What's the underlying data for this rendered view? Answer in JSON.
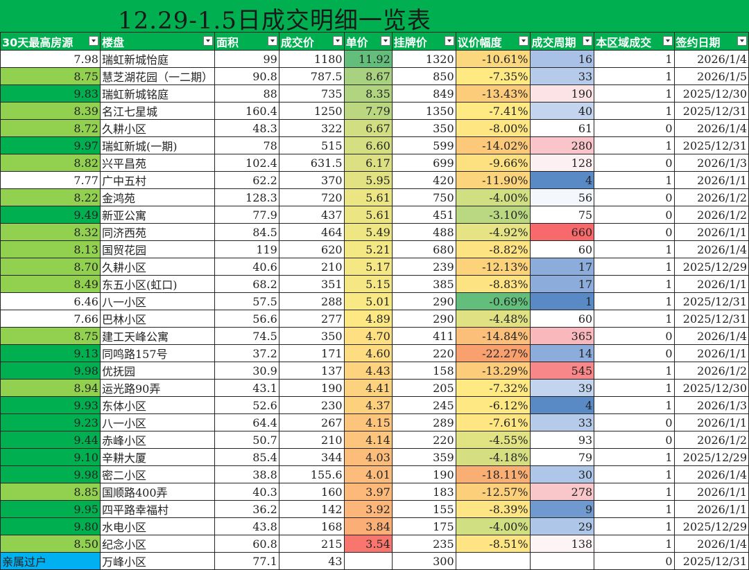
{
  "title": "12.29-1.5日成交明细一览表",
  "columns": [
    "30天最高房源",
    "楼盘",
    "面积",
    "成交价",
    "单价",
    "挂牌价",
    "议价幅度",
    "成交周期",
    "本区域成交",
    "签约日期"
  ],
  "rows": [
    {
      "score": "7.98",
      "name": "瑞虹新城怡庭",
      "area": "99",
      "price": "1180",
      "unit": "11.92",
      "list": "1320",
      "discount": "-10.61%",
      "cycle": "16",
      "local": "1",
      "date": "2026/1/4",
      "c_score": "#ffffff",
      "c_unit": "#63be7b",
      "c_disc": "#fbd87d",
      "c_cycle": "#a9c1e6"
    },
    {
      "score": "8.75",
      "name": "慧芝湖花园（一二期）",
      "area": "90.8",
      "price": "787.5",
      "unit": "8.67",
      "list": "850",
      "discount": "-7.35%",
      "cycle": "33",
      "local": "1",
      "date": "2026/1/5",
      "c_score": "#92d050",
      "c_unit": "#a8d27f",
      "c_disc": "#fee983",
      "c_cycle": "#b6cbea"
    },
    {
      "score": "9.83",
      "name": "瑞虹新城铭庭",
      "area": "88",
      "price": "735",
      "unit": "8.35",
      "list": "849",
      "discount": "-13.43%",
      "cycle": "190",
      "local": "1",
      "date": "2025/12/30",
      "c_score": "#00b050",
      "c_unit": "#b0d480",
      "c_disc": "#fccc7a",
      "c_cycle": "#fbe3e6"
    },
    {
      "score": "8.39",
      "name": "名江七星城",
      "area": "160.4",
      "price": "1250",
      "unit": "7.79",
      "list": "1350",
      "discount": "-7.41%",
      "cycle": "40",
      "local": "1",
      "date": "2025/12/31",
      "c_score": "#92d050",
      "c_unit": "#bbd881",
      "c_disc": "#fee983",
      "c_cycle": "#c2d4ee"
    },
    {
      "score": "8.72",
      "name": "久耕小区",
      "area": "48.3",
      "price": "322",
      "unit": "6.67",
      "list": "350",
      "discount": "-8.00%",
      "cycle": "61",
      "local": "0",
      "date": "2026/1/4",
      "c_score": "#92d050",
      "c_unit": "#d2de82",
      "c_disc": "#fee683",
      "c_cycle": "#ffffff"
    },
    {
      "score": "9.97",
      "name": "瑞虹新城(一期)",
      "area": "78",
      "price": "515",
      "unit": "6.60",
      "list": "599",
      "discount": "-14.02%",
      "cycle": "280",
      "local": "1",
      "date": "2025/12/31",
      "c_score": "#00b050",
      "c_unit": "#d4df82",
      "c_disc": "#fcc97a",
      "c_cycle": "#f9c5ca"
    },
    {
      "score": "8.82",
      "name": "兴平昌苑",
      "area": "102.4",
      "price": "631.5",
      "unit": "6.17",
      "list": "699",
      "discount": "-9.66%",
      "cycle": "128",
      "local": "0",
      "date": "2026/1/3",
      "c_score": "#92d050",
      "c_unit": "#dde082",
      "c_disc": "#fde07f",
      "c_cycle": "#fcf0f2"
    },
    {
      "score": "7.77",
      "name": "广中五村",
      "area": "62.2",
      "price": "370",
      "unit": "5.95",
      "list": "420",
      "discount": "-11.90%",
      "cycle": "4",
      "local": "1",
      "date": "2026/1/1",
      "c_score": "#ffffff",
      "c_unit": "#e2e283",
      "c_disc": "#fcd47c",
      "c_cycle": "#5a8ac6"
    },
    {
      "score": "8.22",
      "name": "金鸿苑",
      "area": "128.3",
      "price": "720",
      "unit": "5.61",
      "list": "750",
      "discount": "-4.00%",
      "cycle": "56",
      "local": "0",
      "date": "2026/1/2",
      "c_score": "#92d050",
      "c_unit": "#ebe583",
      "c_disc": "#d0df82",
      "c_cycle": "#f4f7fc"
    },
    {
      "score": "9.49",
      "name": "新亚公寓",
      "area": "77.9",
      "price": "437",
      "unit": "5.61",
      "list": "451",
      "discount": "-3.10%",
      "cycle": "75",
      "local": "0",
      "date": "2026/1/2",
      "c_score": "#00b050",
      "c_unit": "#ebe583",
      "c_disc": "#b9d881",
      "c_cycle": "#ffffff"
    },
    {
      "score": "8.32",
      "name": "同济西苑",
      "area": "84.5",
      "price": "464",
      "unit": "5.49",
      "list": "488",
      "discount": "-4.92%",
      "cycle": "660",
      "local": "0",
      "date": "2026/1/1",
      "c_score": "#92d050",
      "c_unit": "#eee683",
      "c_disc": "#e5e383",
      "c_cycle": "#f8696b"
    },
    {
      "score": "8.13",
      "name": "国贸花园",
      "area": "119",
      "price": "620",
      "unit": "5.21",
      "list": "680",
      "discount": "-8.82%",
      "cycle": "60",
      "local": "1",
      "date": "2026/1/4",
      "c_score": "#92d050",
      "c_unit": "#f4e884",
      "c_disc": "#fee383",
      "c_cycle": "#ffffff"
    },
    {
      "score": "8.70",
      "name": "久耕小区",
      "area": "40.6",
      "price": "210",
      "unit": "5.17",
      "list": "239",
      "discount": "-12.13%",
      "cycle": "17",
      "local": "1",
      "date": "2025/12/29",
      "c_score": "#92d050",
      "c_unit": "#f5e884",
      "c_disc": "#fcd27b",
      "c_cycle": "#8cacdb"
    },
    {
      "score": "8.49",
      "name": "东五小区(虹口)",
      "area": "68.2",
      "price": "351",
      "unit": "5.15",
      "list": "385",
      "discount": "-8.83%",
      "cycle": "17",
      "local": "1",
      "date": "2026/1/1",
      "c_score": "#92d050",
      "c_unit": "#f5e884",
      "c_disc": "#fee383",
      "c_cycle": "#8cacdb"
    },
    {
      "score": "6.46",
      "name": "八一小区",
      "area": "57.5",
      "price": "288",
      "unit": "5.01",
      "list": "290",
      "discount": "-0.69%",
      "cycle": "1",
      "local": "1",
      "date": "2025/12/31",
      "c_score": "#ffffff",
      "c_unit": "#f9e984",
      "c_disc": "#63be7b",
      "c_cycle": "#5a8ac6"
    },
    {
      "score": "7.66",
      "name": "巴林小区",
      "area": "56.6",
      "price": "277",
      "unit": "4.89",
      "list": "290",
      "discount": "-4.48%",
      "cycle": "60",
      "local": "1",
      "date": "2025/12/31",
      "c_score": "#ffffff",
      "c_unit": "#fde883",
      "c_disc": "#dfe182",
      "c_cycle": "#ffffff"
    },
    {
      "score": "8.75",
      "name": "建工天峰公寓",
      "area": "74.5",
      "price": "350",
      "unit": "4.70",
      "list": "411",
      "discount": "-14.84%",
      "cycle": "365",
      "local": "0",
      "date": "2026/1/4",
      "c_score": "#92d050",
      "c_unit": "#fee082",
      "c_disc": "#fbbf79",
      "c_cycle": "#f8b8bc"
    },
    {
      "score": "9.13",
      "name": "同鸣路157号",
      "area": "37.2",
      "price": "171",
      "unit": "4.60",
      "list": "220",
      "discount": "-22.27%",
      "cycle": "14",
      "local": "0",
      "date": "2026/1/1",
      "c_score": "#00b050",
      "c_unit": "#fedc81",
      "c_disc": "#f8a06e",
      "c_cycle": "#8cacdb"
    },
    {
      "score": "9.98",
      "name": "优抚园",
      "area": "30.9",
      "price": "137",
      "unit": "4.43",
      "list": "158",
      "discount": "-13.29%",
      "cycle": "545",
      "local": "1",
      "date": "2026/1/2",
      "c_score": "#00b050",
      "c_unit": "#fdd37f",
      "c_disc": "#fccc7a",
      "c_cycle": "#f8878a"
    },
    {
      "score": "8.94",
      "name": "运光路90弄",
      "area": "43.1",
      "price": "190",
      "unit": "4.41",
      "list": "205",
      "discount": "-7.32%",
      "cycle": "39",
      "local": "1",
      "date": "2025/12/30",
      "c_score": "#92d050",
      "c_unit": "#fdd27f",
      "c_disc": "#fee983",
      "c_cycle": "#c2d4ee"
    },
    {
      "score": "9.93",
      "name": "东体小区",
      "area": "52.6",
      "price": "230",
      "unit": "4.37",
      "list": "245",
      "discount": "-6.12%",
      "cycle": "4",
      "local": "1",
      "date": "2026/1/3",
      "c_score": "#00b050",
      "c_unit": "#fdd07e",
      "c_disc": "#fde883",
      "c_cycle": "#5a8ac6"
    },
    {
      "score": "9.23",
      "name": "八一小区",
      "area": "64.4",
      "price": "267",
      "unit": "4.15",
      "list": "289",
      "discount": "-7.61%",
      "cycle": "33",
      "local": "0",
      "date": "2026/1/1",
      "c_score": "#00b050",
      "c_unit": "#fdc47c",
      "c_disc": "#fee783",
      "c_cycle": "#b6cbea"
    },
    {
      "score": "9.44",
      "name": "赤峰小区",
      "area": "50.7",
      "price": "210",
      "unit": "4.14",
      "list": "220",
      "discount": "-4.55%",
      "cycle": "93",
      "local": "0",
      "date": "2026/1/2",
      "c_score": "#00b050",
      "c_unit": "#fdc47c",
      "c_disc": "#e1e282",
      "c_cycle": "#ffffff"
    },
    {
      "score": "9.10",
      "name": "辛耕大厦",
      "area": "85.4",
      "price": "344",
      "unit": "4.03",
      "list": "359",
      "discount": "-4.18%",
      "cycle": "79",
      "local": "1",
      "date": "2025/12/29",
      "c_score": "#00b050",
      "c_unit": "#fcbd7b",
      "c_disc": "#d5df82",
      "c_cycle": "#ffffff"
    },
    {
      "score": "9.98",
      "name": "密二小区",
      "area": "38.8",
      "price": "155.6",
      "unit": "4.01",
      "list": "190",
      "discount": "-18.11%",
      "cycle": "30",
      "local": "1",
      "date": "2026/1/4",
      "c_score": "#00b050",
      "c_unit": "#fcbc7b",
      "c_disc": "#f9ae73",
      "c_cycle": "#aec6e8"
    },
    {
      "score": "8.85",
      "name": "国顺路400弄",
      "area": "40.3",
      "price": "160",
      "unit": "3.97",
      "list": "183",
      "discount": "-12.57%",
      "cycle": "278",
      "local": "1",
      "date": "2026/1/1",
      "c_score": "#92d050",
      "c_unit": "#fcb97a",
      "c_disc": "#fcd07b",
      "c_cycle": "#f9c6ca"
    },
    {
      "score": "9.95",
      "name": "四平路幸福村",
      "area": "36.2",
      "price": "142",
      "unit": "3.92",
      "list": "155",
      "discount": "-8.39%",
      "cycle": "9",
      "local": "1",
      "date": "2026/1/1",
      "c_score": "#00b050",
      "c_unit": "#fcb679",
      "c_disc": "#fee583",
      "c_cycle": "#7099cf"
    },
    {
      "score": "9.80",
      "name": "水电小区",
      "area": "43.8",
      "price": "168",
      "unit": "3.84",
      "list": "175",
      "discount": "-4.00%",
      "cycle": "29",
      "local": "1",
      "date": "2025/12/29",
      "c_score": "#00b050",
      "c_unit": "#fbaf77",
      "c_disc": "#d0df82",
      "c_cycle": "#aec6e8"
    },
    {
      "score": "8.50",
      "name": "纪念小区",
      "area": "60.8",
      "price": "215",
      "unit": "3.54",
      "list": "235",
      "discount": "-8.51%",
      "cycle": "138",
      "local": "1",
      "date": "2026/1/4",
      "c_score": "#92d050",
      "c_unit": "#f8766d",
      "c_disc": "#fee483",
      "c_cycle": "#fdf4f5"
    },
    {
      "score": "亲属过户",
      "name": "万峰小区",
      "area": "77.1",
      "price": "43",
      "unit": "",
      "list": "300",
      "discount": "",
      "cycle": "",
      "local": "0",
      "date": "2025/12/31",
      "c_score": "#00b0f0",
      "c_unit": "#ffffff",
      "c_disc": "#ffffff",
      "c_cycle": "#ffffff"
    }
  ]
}
